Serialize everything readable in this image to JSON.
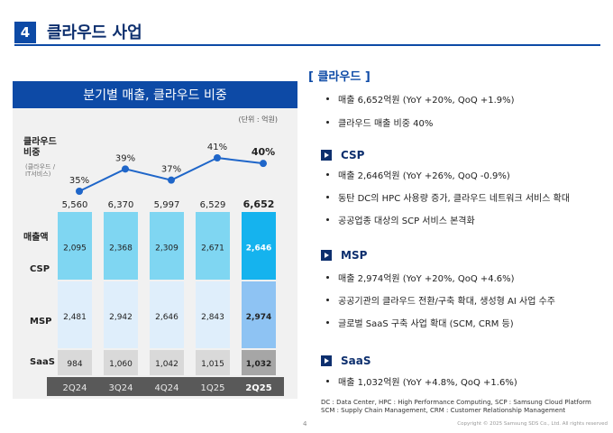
{
  "header": {
    "number": "4",
    "title": "클라우드 사업"
  },
  "chart_data": {
    "type": "bar",
    "title": "분기별 매출, 클라우드 비중",
    "unit": "(단위 : 억원)",
    "categories": [
      "2Q24",
      "3Q24",
      "4Q24",
      "1Q25",
      "2Q25"
    ],
    "totals": [
      5560,
      6370,
      5997,
      6529,
      6652
    ],
    "totals_text": [
      "5,560",
      "6,370",
      "5,997",
      "6,529",
      "6,652"
    ],
    "series": [
      {
        "name": "SaaS",
        "values": [
          984,
          1060,
          1042,
          1015,
          1032
        ],
        "text": [
          "984",
          "1,060",
          "1,042",
          "1,015",
          "1,032"
        ]
      },
      {
        "name": "MSP",
        "values": [
          2481,
          2942,
          2646,
          2843,
          2974
        ],
        "text": [
          "2,481",
          "2,942",
          "2,646",
          "2,843",
          "2,974"
        ]
      },
      {
        "name": "CSP",
        "values": [
          2095,
          2368,
          2309,
          2671,
          2646
        ],
        "text": [
          "2,095",
          "2,368",
          "2,309",
          "2,671",
          "2,646"
        ]
      }
    ],
    "ratio": {
      "values": [
        35,
        39,
        37,
        41,
        40
      ],
      "text": [
        "35%",
        "39%",
        "37%",
        "41%",
        "40%"
      ]
    },
    "labels": {
      "ratio": "클라우드\n비중",
      "ratio_sub": "(클라우드 /\nIT서비스)",
      "revenue": "매출액",
      "csp": "CSP",
      "msp": "MSP",
      "saas": "SaaS"
    }
  },
  "right": {
    "cloud": {
      "heading": "[ 클라우드 ]",
      "bullets": [
        "매출 6,652억원 (YoY +20%, QoQ +1.9%)",
        "클라우드 매출 비중 40%"
      ]
    },
    "csp": {
      "heading": "CSP",
      "bullets": [
        "매출 2,646억원 (YoY +26%, QoQ -0.9%)",
        "동탄 DC의 HPC 사용량 증가, 클라우드 네트워크 서비스 확대",
        "공공업종 대상의 SCP 서비스 본격화"
      ]
    },
    "msp": {
      "heading": "MSP",
      "bullets": [
        "매출 2,974억원 (YoY +20%, QoQ +4.6%)",
        "공공기관의 클라우드 전환/구축 확대, 생성형 AI 사업 수주",
        "글로벌 SaaS 구축 사업 확대 (SCM, CRM 등)"
      ]
    },
    "saas": {
      "heading": "SaaS",
      "bullets": [
        "매출 1,032억원 (YoY +4.8%, QoQ +1.6%)"
      ]
    }
  },
  "footnote": {
    "line1": "DC : Data Center, HPC : High Performance Computing, SCP : Samsung Cloud Platform",
    "line2": "SCM : Supply Chain Management, CRM : Customer Relationship Management"
  },
  "page_number": "4",
  "copyright": "Copyright © 2025 Samsung SDS Co., Ltd. All rights reserved",
  "colors": {
    "brand": "#0d4aa6",
    "csp": "#7fd6f2",
    "csp_hi": "#15b3ee",
    "msp": "#dfeefb",
    "msp_hi": "#8ec3f3",
    "saas": "#d9d9d9",
    "saas_hi": "#a6a6a6",
    "line": "#1f66c9"
  }
}
